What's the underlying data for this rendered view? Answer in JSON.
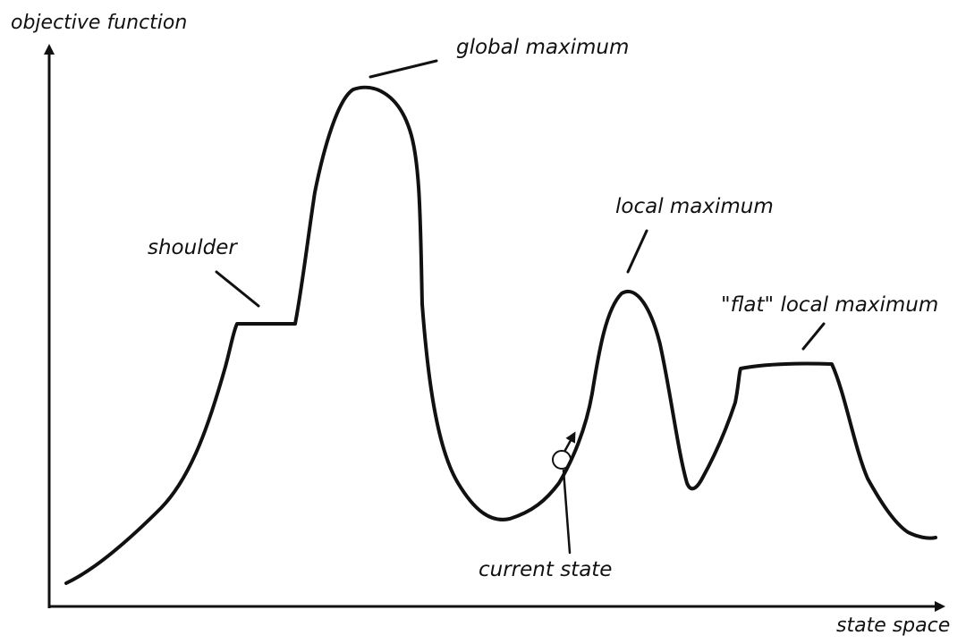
{
  "axes": {
    "y_label": "objective function",
    "x_label": "state space"
  },
  "annotations": {
    "global_maximum": "global maximum",
    "shoulder": "shoulder",
    "local_maximum": "local maximum",
    "flat_local_maximum": "\"flat\" local maximum",
    "current_state": "current state"
  },
  "colors": {
    "ink": "#111111",
    "background": "#ffffff"
  }
}
